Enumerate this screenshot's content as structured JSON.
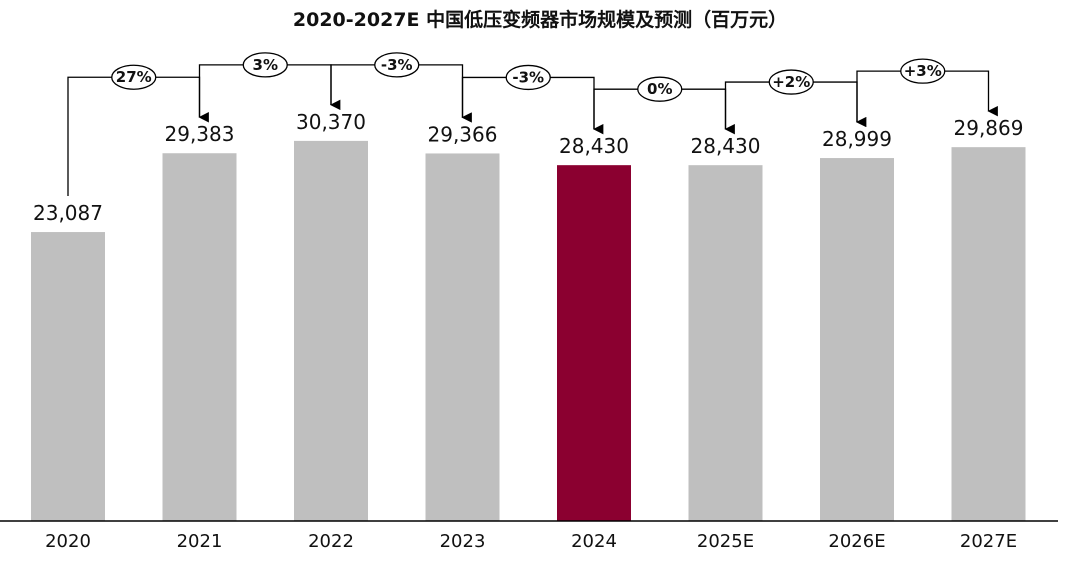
{
  "chart_data": {
    "type": "bar",
    "title": "2020-2027E 中国低压变频器市场规模及预测（百万元）",
    "categories": [
      "2020",
      "2021",
      "2022",
      "2023",
      "2024",
      "2025E",
      "2026E",
      "2027E"
    ],
    "values": [
      23087,
      29383,
      30370,
      29366,
      28430,
      28430,
      28999,
      29869
    ],
    "value_labels": [
      "23,087",
      "29,383",
      "30,370",
      "29,366",
      "28,430",
      "28,430",
      "28,999",
      "29,869"
    ],
    "growth_labels": [
      "27%",
      "3%",
      "-3%",
      "-3%",
      "0%",
      "+2%",
      "+3%"
    ],
    "highlight_category": "2024",
    "colors": {
      "bar": "#bfbfbf",
      "highlight": "#8b0030",
      "axis": "#000000"
    },
    "ylim": [
      0,
      31000
    ],
    "grid": false,
    "xlabel": "",
    "ylabel": ""
  }
}
